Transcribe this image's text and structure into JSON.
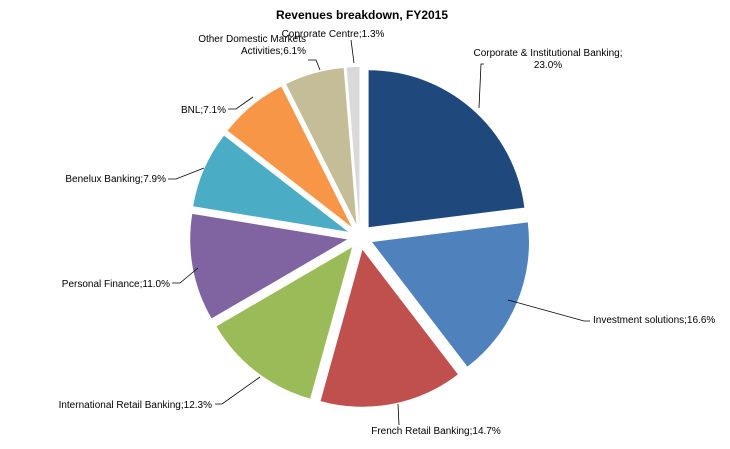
{
  "chart_data": {
    "type": "pie",
    "title": "Revenues breakdown, FY2015",
    "exploded": true,
    "start_angle_deg": 0,
    "direction": "clockwise",
    "slices": [
      {
        "label": "Corporate & Institutional Banking",
        "value_label": "23.0%",
        "value": 23.0,
        "color": "#1F497D"
      },
      {
        "label": "Investment solutions",
        "value_label": "16.6%",
        "value": 16.6,
        "color": "#4F81BD"
      },
      {
        "label": "French Retail Banking",
        "value_label": "14.7%",
        "value": 14.7,
        "color": "#C0504D"
      },
      {
        "label": "International  Retail Banking",
        "value_label": "12.3%",
        "value": 12.3,
        "color": "#9BBB59"
      },
      {
        "label": "Personal Finance",
        "value_label": "11.0%",
        "value": 11.0,
        "color": "#8064A2"
      },
      {
        "label": "Benelux Banking",
        "value_label": "7.9%",
        "value": 7.9,
        "color": "#4BACC6"
      },
      {
        "label": "BNL",
        "value_label": "7.1%",
        "value": 7.1,
        "color": "#F79646"
      },
      {
        "label": "Other Domestic Markets Activities",
        "value_label": "6.1%",
        "value": 6.1,
        "color": "#C4BD97"
      },
      {
        "label": "Coprorate Centre",
        "value_label": "1.3%",
        "value": 1.3,
        "color": "#D9D9D9"
      }
    ],
    "label_lines": [
      [
        "Corporate & Institutional Banking;",
        "23.0%"
      ],
      [
        "Investment solutions;16.6%"
      ],
      [
        "French Retail Banking;14.7%"
      ],
      [
        "International  Retail Banking;12.3%"
      ],
      [
        "Personal Finance;11.0%"
      ],
      [
        "Benelux Banking;7.9%"
      ],
      [
        "BNL;7.1%"
      ],
      [
        "Other Domestic Markets",
        "Activities;6.1%"
      ],
      [
        "Coprorate Centre;1.3%"
      ]
    ]
  }
}
